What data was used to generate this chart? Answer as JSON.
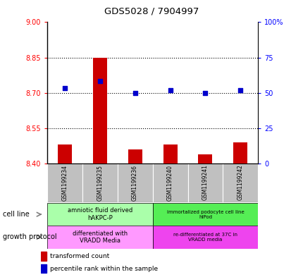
{
  "title": "GDS5028 / 7904997",
  "samples": [
    "GSM1199234",
    "GSM1199235",
    "GSM1199236",
    "GSM1199240",
    "GSM1199241",
    "GSM1199242"
  ],
  "bar_values": [
    8.48,
    8.85,
    8.46,
    8.48,
    8.44,
    8.49
  ],
  "bar_base": 8.4,
  "scatter_values": [
    8.72,
    8.75,
    8.7,
    8.71,
    8.7,
    8.71
  ],
  "ylim_left": [
    8.4,
    9.0
  ],
  "ylim_right": [
    0,
    100
  ],
  "yticks_left": [
    8.4,
    8.55,
    8.7,
    8.85,
    9.0
  ],
  "yticks_right": [
    0,
    25,
    50,
    75,
    100
  ],
  "ytick_labels_right": [
    "0",
    "25",
    "50",
    "75",
    "100%"
  ],
  "bar_color": "#cc0000",
  "scatter_color": "#0000cc",
  "cell_line_labels": [
    "amniotic fluid derived\nhAKPC-P",
    "immortalized podocyte cell line\nhIPod"
  ],
  "cell_line_colors_left": "#aaffaa",
  "cell_line_colors_right": "#55ee55",
  "growth_protocol_labels": [
    "differentiated with\nVRADD Media",
    "re-differentiated at 37C in\nVRADD media"
  ],
  "growth_protocol_colors_left": "#ff99ff",
  "growth_protocol_colors_right": "#ee44ee",
  "legend_bar_label": "transformed count",
  "legend_scatter_label": "percentile rank within the sample",
  "cell_line_row_label": "cell line",
  "growth_protocol_row_label": "growth protocol",
  "xlabel_gray": "#c0c0c0",
  "bar_width": 0.4,
  "scatter_size": 15
}
